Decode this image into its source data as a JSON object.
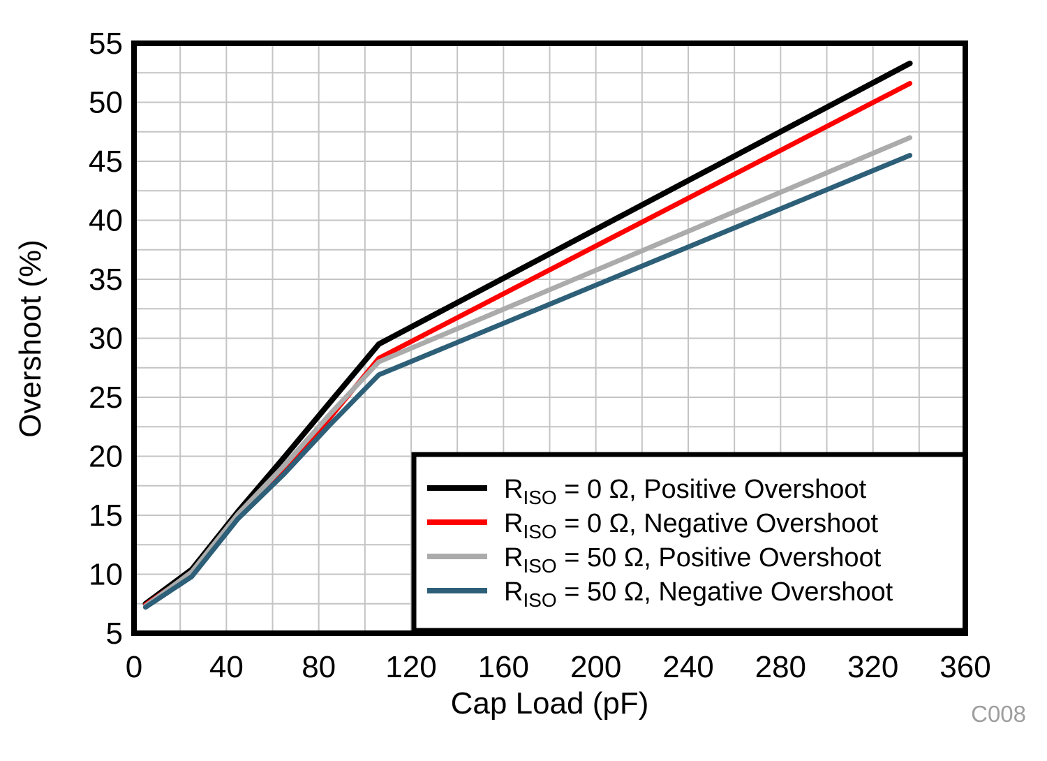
{
  "figure": {
    "code_label": "C008",
    "background": "#ffffff"
  },
  "chart_data": {
    "type": "line",
    "title": "",
    "xlabel": "Cap Load (pF)",
    "ylabel": "Overshoot (%)",
    "xlim": [
      0,
      360
    ],
    "ylim": [
      5,
      55
    ],
    "x_major_ticks": [
      0,
      40,
      80,
      120,
      160,
      200,
      240,
      280,
      320,
      360
    ],
    "y_major_ticks": [
      5,
      10,
      15,
      20,
      25,
      30,
      35,
      40,
      45,
      50,
      55
    ],
    "x_minor_step": 20,
    "y_minor_step": 2.5,
    "grid": "minor gridlines on, light gray, no tick marks",
    "gridline_color": "#c4c4c4",
    "axis_border_color": "#000000",
    "legend_position": "inside bottom-right, boxed, shares plot bottom/right border",
    "series": [
      {
        "name": "RISO = 0 Ω, Positive Overshoot",
        "label_main": "R",
        "label_sub": "ISO",
        "label_rest": " = 0 Ω, Positive Overshoot",
        "color": "#000000",
        "line_width": 8,
        "points": [
          [
            5,
            7.5
          ],
          [
            25,
            10.4
          ],
          [
            45,
            15.3
          ],
          [
            65,
            19.9
          ],
          [
            85,
            24.6
          ],
          [
            106,
            29.5
          ],
          [
            336,
            53.3
          ]
        ]
      },
      {
        "name": "RISO = 0 Ω, Negative Overshoot",
        "label_main": "R",
        "label_sub": "ISO",
        "label_rest": " = 0 Ω, Negative Overshoot",
        "color": "#ff0000",
        "line_width": 7,
        "points": [
          [
            5,
            7.4
          ],
          [
            25,
            10.1
          ],
          [
            45,
            14.9
          ],
          [
            65,
            18.9
          ],
          [
            85,
            23.3
          ],
          [
            106,
            28.3
          ],
          [
            336,
            51.6
          ]
        ]
      },
      {
        "name": "RISO = 50 Ω, Positive Overshoot",
        "label_main": "R",
        "label_sub": "ISO",
        "label_rest": " = 50 Ω, Positive Overshoot",
        "color": "#ababab",
        "line_width": 7,
        "points": [
          [
            5,
            7.3
          ],
          [
            25,
            10.2
          ],
          [
            45,
            15.1
          ],
          [
            65,
            19.2
          ],
          [
            85,
            23.6
          ],
          [
            106,
            28.0
          ],
          [
            336,
            47.0
          ]
        ]
      },
      {
        "name": "RISO = 50 Ω, Negative Overshoot",
        "label_main": "R",
        "label_sub": "ISO",
        "label_rest": " = 50 Ω, Negative Overshoot",
        "color": "#2d5f78",
        "line_width": 7,
        "points": [
          [
            5,
            7.2
          ],
          [
            25,
            9.8
          ],
          [
            45,
            14.7
          ],
          [
            65,
            18.5
          ],
          [
            85,
            22.7
          ],
          [
            106,
            26.9
          ],
          [
            336,
            45.5
          ]
        ]
      }
    ]
  }
}
